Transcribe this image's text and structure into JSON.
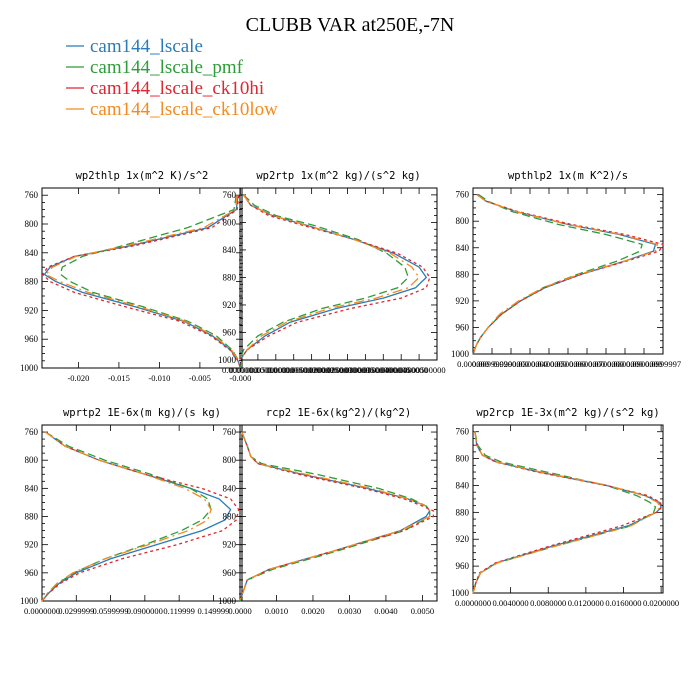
{
  "title": "CLUBB VAR at250E,-7N",
  "legend": [
    {
      "label": "cam144_lscale",
      "color": "#2a7bb8",
      "dash": "solid"
    },
    {
      "label": "cam144_lscale_pmf",
      "color": "#2e9c3a",
      "dash": "8,4"
    },
    {
      "label": "cam144_lscale_ck10hi",
      "color": "#e0262f",
      "dash": "3,3"
    },
    {
      "label": "cam144_lscale_ck10low",
      "color": "#f58a1f",
      "dash": "10,4,2,4"
    }
  ],
  "chart_data": [
    {
      "type": "line",
      "title": "wp2thlp  1x(m^2 K)/s^2",
      "xlim": [
        -0.0245,
        0.0002
      ],
      "ylim": [
        1000,
        750
      ],
      "xticks": [
        -0.02,
        -0.015,
        -0.01,
        -0.005,
        0.0
      ],
      "xtick_labels": [
        "-0.020",
        "-0.015",
        "-0.010",
        "-0.005",
        "-0.000"
      ],
      "yticks": [
        760,
        800,
        840,
        880,
        920,
        960,
        1000
      ],
      "y": [
        760,
        780,
        805,
        830,
        845,
        860,
        870,
        880,
        895,
        915,
        935,
        955,
        975,
        990,
        1000
      ],
      "series": [
        {
          "name": "cam144_lscale",
          "values": [
            -0.0003,
            -0.0005,
            -0.004,
            -0.0135,
            -0.0205,
            -0.0235,
            -0.0242,
            -0.0228,
            -0.0195,
            -0.013,
            -0.007,
            -0.0035,
            -0.0012,
            -0.0003,
            0.0
          ]
        },
        {
          "name": "cam144_lscale_pmf",
          "values": [
            -0.0005,
            -0.0008,
            -0.0065,
            -0.0145,
            -0.0195,
            -0.022,
            -0.0222,
            -0.021,
            -0.0182,
            -0.012,
            -0.0065,
            -0.003,
            -0.001,
            -0.0002,
            0.0
          ]
        },
        {
          "name": "cam144_lscale_ck10hi",
          "values": [
            -0.0002,
            -0.0004,
            -0.0035,
            -0.013,
            -0.0205,
            -0.0238,
            -0.0244,
            -0.0235,
            -0.0205,
            -0.0142,
            -0.0075,
            -0.0037,
            -0.0013,
            -0.0003,
            0.0
          ]
        },
        {
          "name": "cam144_lscale_ck10low",
          "values": [
            -0.0004,
            -0.0006,
            -0.0045,
            -0.014,
            -0.0203,
            -0.0232,
            -0.024,
            -0.0223,
            -0.0188,
            -0.0125,
            -0.0068,
            -0.0033,
            -0.0011,
            -0.0002,
            0.0
          ]
        }
      ]
    },
    {
      "type": "line",
      "title": "wp2rtp  1x(m^2 kg)/(s^2 kg)",
      "xlim": [
        0.0,
        5.5e-06
      ],
      "ylim": [
        1000,
        750
      ],
      "xticks": [
        0.0,
        5e-07,
        1e-06,
        1.5e-06,
        2e-06,
        2.5e-06,
        3e-06,
        3.5e-06,
        4e-06,
        4.5e-06,
        5e-06
      ],
      "xtick_labels": [
        "0.0000000",
        "0.000000500000",
        "0.00000100000",
        "0.00000150000",
        "0.00000200000",
        "0.00000250000",
        "0.00000300000",
        "0.00000350000",
        "0.00000400000",
        "0.00000450000",
        "0.00000500000"
      ],
      "yticks": [
        760,
        800,
        840,
        880,
        920,
        960,
        1000
      ],
      "y": [
        760,
        775,
        790,
        805,
        825,
        845,
        865,
        880,
        895,
        910,
        925,
        945,
        965,
        985,
        1000
      ],
      "series": [
        {
          "name": "cam144_lscale",
          "values": [
            1e-07,
            3e-07,
            9e-07,
            1.9e-06,
            3.2e-06,
            4.3e-06,
            5e-06,
            5.2e-06,
            4.9e-06,
            4e-06,
            2.7e-06,
            1.4e-06,
            7e-07,
            2e-07,
            0.0
          ]
        },
        {
          "name": "cam144_lscale_pmf",
          "values": [
            1e-07,
            4e-07,
            1e-06,
            2.1e-06,
            3.3e-06,
            4.1e-06,
            4.6e-06,
            4.7e-06,
            4.4e-06,
            3.5e-06,
            2.3e-06,
            1.2e-06,
            5e-07,
            1e-07,
            0.0
          ]
        },
        {
          "name": "cam144_lscale_ck10hi",
          "values": [
            1e-07,
            3e-07,
            8e-07,
            1.8e-06,
            3.2e-06,
            4.4e-06,
            5.1e-06,
            5.3e-06,
            5.2e-06,
            4.5e-06,
            3.1e-06,
            1.6e-06,
            8e-07,
            2e-07,
            0.0
          ]
        },
        {
          "name": "cam144_lscale_ck10low",
          "values": [
            1e-07,
            3e-07,
            9e-07,
            1.9e-06,
            3.2e-06,
            4.2e-06,
            4.8e-06,
            5e-06,
            4.7e-06,
            3.8e-06,
            2.5e-06,
            1.3e-06,
            6e-07,
            2e-07,
            0.0
          ]
        }
      ]
    },
    {
      "type": "line",
      "title": "wpthlp2  1x(m K^2)/s",
      "xlim": [
        0.0,
        0.1
      ],
      "ylim": [
        1000,
        750
      ],
      "xticks": [
        0.0,
        0.01,
        0.02,
        0.03,
        0.04,
        0.05,
        0.06,
        0.07,
        0.08,
        0.09,
        0.1
      ],
      "xtick_labels": [
        "0.000000",
        "0.00999999",
        "0.0200000",
        "0.0300000",
        "0.0400000",
        "0.0500000",
        "0.0600000",
        "0.0700000",
        "0.0800000",
        "0.0900000",
        "0.0999997"
      ],
      "yticks": [
        760,
        800,
        840,
        880,
        920,
        960,
        1000
      ],
      "y": [
        760,
        770,
        785,
        805,
        820,
        835,
        845,
        860,
        880,
        900,
        920,
        940,
        960,
        975,
        985,
        1000
      ],
      "series": [
        {
          "name": "cam144_lscale",
          "values": [
            0.002,
            0.007,
            0.022,
            0.05,
            0.077,
            0.096,
            0.095,
            0.08,
            0.057,
            0.038,
            0.025,
            0.015,
            0.008,
            0.004,
            0.002,
            0.0
          ]
        },
        {
          "name": "cam144_lscale_pmf",
          "values": [
            0.003,
            0.008,
            0.02,
            0.045,
            0.07,
            0.089,
            0.088,
            0.076,
            0.055,
            0.037,
            0.025,
            0.015,
            0.008,
            0.004,
            0.002,
            0.0
          ]
        },
        {
          "name": "cam144_lscale_ck10hi",
          "values": [
            0.002,
            0.007,
            0.023,
            0.052,
            0.08,
            0.1,
            0.098,
            0.081,
            0.057,
            0.038,
            0.025,
            0.015,
            0.008,
            0.004,
            0.002,
            0.0
          ]
        },
        {
          "name": "cam144_lscale_ck10low",
          "values": [
            0.002,
            0.007,
            0.022,
            0.05,
            0.078,
            0.097,
            0.096,
            0.08,
            0.056,
            0.037,
            0.024,
            0.014,
            0.008,
            0.004,
            0.002,
            0.0
          ]
        }
      ]
    },
    {
      "type": "line",
      "title": "wprtp2  1E-6x(m kg)/(s kg)",
      "xlim": [
        0.0,
        0.000175
      ],
      "ylim": [
        1000,
        750
      ],
      "xticks": [
        0.0,
        3e-05,
        6e-05,
        9e-05,
        0.00012,
        0.00015
      ],
      "xtick_labels": [
        "0.0000000",
        "0.0299999",
        "0.0599999",
        "0.0900000",
        "0.119999",
        "0.149999"
      ],
      "yticks": [
        760,
        800,
        840,
        880,
        920,
        960,
        1000
      ],
      "y": [
        760,
        780,
        800,
        820,
        840,
        855,
        870,
        885,
        900,
        920,
        940,
        960,
        975,
        990,
        1000
      ],
      "series": [
        {
          "name": "cam144_lscale",
          "values": [
            3e-06,
            2e-05,
            5e-05,
            9e-05,
            0.00013,
            0.000155,
            0.000165,
            0.00016,
            0.00014,
            0.0001,
            6e-05,
            3e-05,
            1.5e-05,
            5e-06,
            0.0
          ]
        },
        {
          "name": "cam144_lscale_pmf",
          "values": [
            3e-06,
            2.3e-05,
            5.5e-05,
            9.5e-05,
            0.00013,
            0.000145,
            0.000148,
            0.00014,
            0.000122,
            9e-05,
            5.5e-05,
            2.8e-05,
            1.4e-05,
            5e-06,
            0.0
          ]
        },
        {
          "name": "cam144_lscale_ck10hi",
          "values": [
            3e-06,
            2e-05,
            5e-05,
            9e-05,
            0.00014,
            0.000165,
            0.000172,
            0.00017,
            0.000158,
            0.000118,
            7e-05,
            3.3e-05,
            1.6e-05,
            5e-06,
            0.0
          ]
        },
        {
          "name": "cam144_lscale_ck10low",
          "values": [
            3e-06,
            2e-05,
            5e-05,
            9e-05,
            0.000125,
            0.000142,
            0.000148,
            0.000145,
            0.000128,
            9.3e-05,
            5.5e-05,
            2.7e-05,
            1.3e-05,
            4e-06,
            0.0
          ]
        }
      ]
    },
    {
      "type": "line",
      "title": "rcp2  1E-6x(kg^2)/(kg^2)",
      "xlim": [
        0.0,
        0.0054
      ],
      "ylim": [
        1000,
        750
      ],
      "xticks": [
        0.0,
        0.001,
        0.002,
        0.003,
        0.004,
        0.005
      ],
      "xtick_labels": [
        "0.0000",
        "0.0010",
        "0.0020",
        "0.0030",
        "0.0040",
        "0.0050"
      ],
      "yticks": [
        760,
        800,
        840,
        880,
        920,
        960,
        1000
      ],
      "y": [
        760,
        780,
        795,
        805,
        820,
        840,
        855,
        865,
        872,
        880,
        900,
        930,
        955,
        970,
        985,
        1000
      ],
      "series": [
        {
          "name": "cam144_lscale",
          "values": [
            5e-05,
            0.0002,
            0.0003,
            0.0005,
            0.0017,
            0.0035,
            0.0046,
            0.0051,
            0.0052,
            0.0051,
            0.0044,
            0.0025,
            0.0008,
            0.0002,
            0.0001,
            0.0
          ]
        },
        {
          "name": "cam144_lscale_pmf",
          "values": [
            5e-05,
            0.0002,
            0.0003,
            0.0006,
            0.0021,
            0.0038,
            0.0047,
            0.0051,
            0.0052,
            0.0052,
            0.0045,
            0.0026,
            0.0009,
            0.0002,
            0.0001,
            0.0
          ]
        },
        {
          "name": "cam144_lscale_ck10hi",
          "values": [
            5e-05,
            0.0002,
            0.0003,
            0.0005,
            0.0016,
            0.0034,
            0.0045,
            0.005,
            0.0053,
            0.0053,
            0.0045,
            0.0025,
            0.0008,
            0.0002,
            0.0001,
            0.0
          ]
        },
        {
          "name": "cam144_lscale_ck10low",
          "values": [
            5e-05,
            0.0002,
            0.0003,
            0.0005,
            0.0018,
            0.0036,
            0.0046,
            0.0051,
            0.0052,
            0.0052,
            0.0044,
            0.0025,
            0.0008,
            0.0002,
            0.0001,
            0.0
          ]
        }
      ]
    },
    {
      "type": "line",
      "title": "wp2rcp  1E-3x(m^2 kg)/(s^2 kg)",
      "xlim": [
        0.0,
        0.0202
      ],
      "ylim": [
        1000,
        750
      ],
      "xticks": [
        0.0,
        0.004,
        0.008,
        0.012,
        0.016,
        0.02
      ],
      "xtick_labels": [
        "0.0000000",
        "0.0040000",
        "0.0080000",
        "0.0120000",
        "0.0160000",
        "0.0200000"
      ],
      "yticks": [
        760,
        800,
        840,
        880,
        920,
        960,
        1000
      ],
      "y": [
        760,
        780,
        795,
        805,
        820,
        840,
        855,
        865,
        872,
        880,
        900,
        930,
        955,
        970,
        985,
        1000
      ],
      "series": [
        {
          "name": "cam144_lscale",
          "values": [
            0.0002,
            0.0004,
            0.001,
            0.0025,
            0.007,
            0.0142,
            0.0183,
            0.0198,
            0.02,
            0.0195,
            0.0165,
            0.0085,
            0.0025,
            0.0008,
            0.0003,
            0.0
          ]
        },
        {
          "name": "cam144_lscale_pmf",
          "values": [
            0.0002,
            0.0005,
            0.0013,
            0.003,
            0.0078,
            0.0142,
            0.0174,
            0.0188,
            0.0194,
            0.0192,
            0.0168,
            0.0088,
            0.0026,
            0.0008,
            0.0003,
            0.0
          ]
        },
        {
          "name": "cam144_lscale_ck10hi",
          "values": [
            0.0002,
            0.0004,
            0.001,
            0.0024,
            0.0068,
            0.0142,
            0.0186,
            0.0199,
            0.0201,
            0.0195,
            0.0158,
            0.0082,
            0.0024,
            0.0007,
            0.0003,
            0.0
          ]
        },
        {
          "name": "cam144_lscale_ck10low",
          "values": [
            0.0002,
            0.0004,
            0.001,
            0.0025,
            0.0072,
            0.0144,
            0.0182,
            0.0196,
            0.0199,
            0.0194,
            0.0168,
            0.0088,
            0.0026,
            0.0008,
            0.0003,
            0.0
          ]
        }
      ]
    }
  ]
}
